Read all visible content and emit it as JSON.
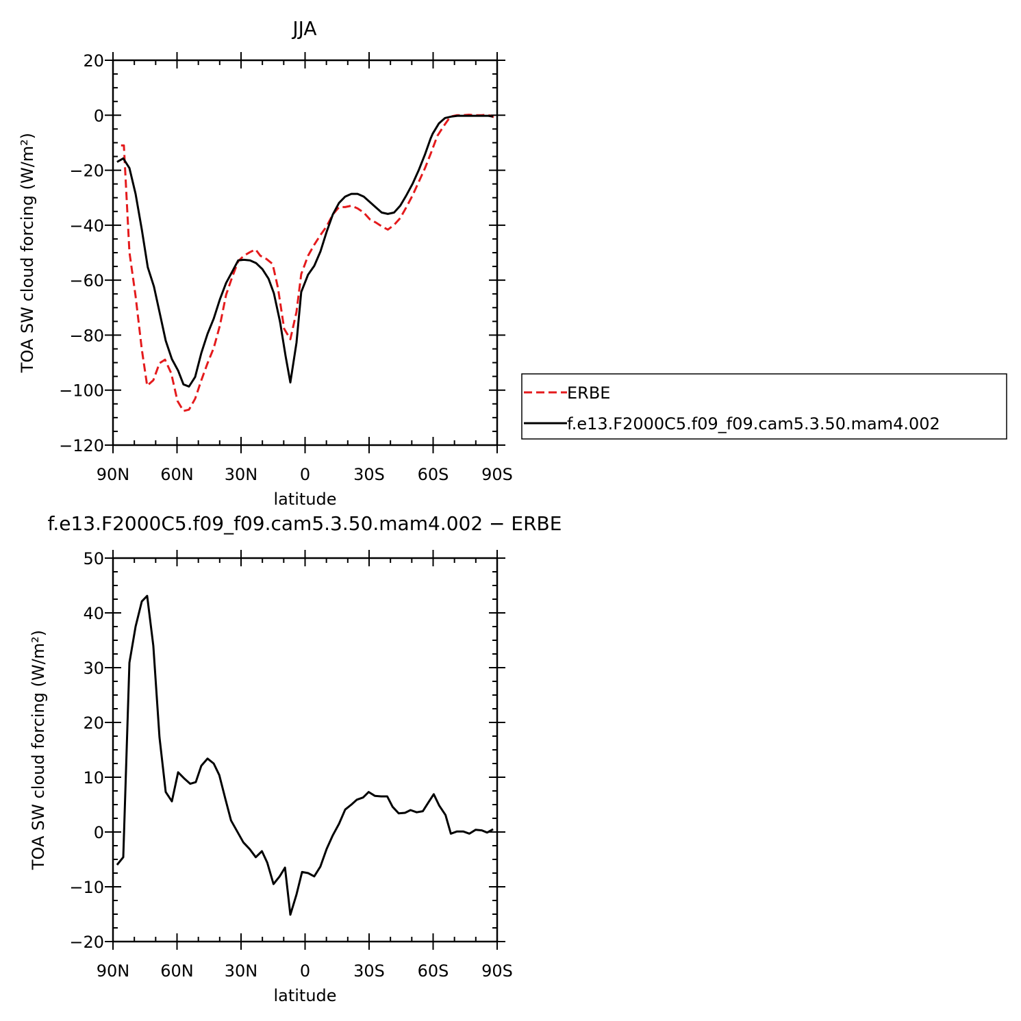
{
  "chart_data": [
    {
      "type": "line",
      "title": "JJA",
      "xlabel": "latitude",
      "ylabel": "TOA SW cloud forcing (W/m²)",
      "xlim": [
        90,
        -90
      ],
      "xticks": [
        {
          "value": 90,
          "label": "90N"
        },
        {
          "value": 60,
          "label": "60N"
        },
        {
          "value": 30,
          "label": "30N"
        },
        0,
        {
          "value": -30,
          "label": "30S"
        },
        {
          "value": -60,
          "label": "60S"
        },
        {
          "value": -90,
          "label": "90S"
        }
      ],
      "ylim": [
        -120,
        20
      ],
      "yticks": [
        {
          "value": -120,
          "label": "−120"
        },
        {
          "value": -100,
          "label": "−100"
        },
        {
          "value": -80,
          "label": "−80"
        },
        {
          "value": -60,
          "label": "−60"
        },
        {
          "value": -40,
          "label": "−40"
        },
        {
          "value": -20,
          "label": "−20"
        },
        0,
        20
      ],
      "legend": "right",
      "series": [
        {
          "name": "ERBE",
          "color": "#e41a1c",
          "dash": true,
          "x": [
            86.2,
            84.9,
            82.3,
            79.4,
            76.5,
            74,
            71.1,
            68.2,
            65.6,
            62.7,
            59.8,
            57,
            54.4,
            51.5,
            48.6,
            45.7,
            42.8,
            39.9,
            37,
            34.2,
            31.3,
            28.7,
            25.8,
            23.2,
            21,
            18.1,
            15.2,
            12.7,
            9.8,
            6.9,
            4,
            1.8,
            -1.4,
            -4.3,
            -7.2,
            -10.1,
            -13,
            -15.9,
            -18.8,
            -21.7,
            -24.6,
            -27.5,
            -30.4,
            -33.3,
            -35.9,
            -38.8,
            -41.7,
            -44.6,
            -47.5,
            -50.4,
            -53.3,
            -56.2,
            -59.1,
            -62,
            -64.9,
            -68.1,
            -71,
            -73.9,
            -76.8,
            -79.7,
            -82.6,
            -85.5,
            -88.4
          ],
          "values": [
            -11,
            -11,
            -49.8,
            -65.8,
            -85.2,
            -98.4,
            -96.4,
            -90.2,
            -88.9,
            -93.9,
            -103.9,
            -107.6,
            -107.1,
            -103.1,
            -96.4,
            -90.2,
            -84.7,
            -76.5,
            -65.3,
            -59,
            -53.1,
            -51.1,
            -49.8,
            -48.8,
            -51.1,
            -52.3,
            -54.1,
            -62.8,
            -77.7,
            -81.5,
            -71.5,
            -57.8,
            -51.1,
            -47.1,
            -43.6,
            -40.4,
            -36.1,
            -33.4,
            -33.4,
            -32.9,
            -33.9,
            -35.4,
            -37.9,
            -39.1,
            -40.4,
            -41.6,
            -39.9,
            -37.4,
            -33.4,
            -29.1,
            -24.2,
            -19.2,
            -13.5,
            -7.5,
            -4,
            -0.5,
            0,
            0,
            0.2,
            0,
            0,
            0.2,
            -0.7
          ]
        },
        {
          "name": "f.e13.F2000C5.f09_f09.cam5.3.50.mam4.002",
          "color": "#000000",
          "dash": false,
          "x": [
            88.1,
            85.2,
            82.3,
            79.4,
            76.5,
            73.7,
            70.8,
            67.9,
            65.3,
            62.4,
            59.5,
            57,
            54.4,
            51.5,
            48.6,
            45.7,
            42.8,
            39.9,
            37,
            34.2,
            31.3,
            28.7,
            25.8,
            22.9,
            20,
            17.1,
            14.6,
            11.7,
            9.1,
            6.9,
            4,
            1.8,
            -1.4,
            -4.3,
            -7.2,
            -10.1,
            -13,
            -15.9,
            -18.8,
            -21.7,
            -24.6,
            -27.5,
            -30.4,
            -33.3,
            -35.9,
            -38.8,
            -41.7,
            -44.6,
            -47.5,
            -50.4,
            -53.3,
            -56.2,
            -58.8,
            -59.8,
            -62.7,
            -65.6,
            -68.5,
            -71.4,
            -74.3,
            -77.2,
            -80.1,
            -83,
            -85.9,
            -88
          ],
          "values": [
            -17,
            -15.7,
            -19.2,
            -28.6,
            -41.6,
            -55.3,
            -62.3,
            -72.7,
            -82,
            -88.7,
            -92.9,
            -97.9,
            -98.7,
            -95.2,
            -86.5,
            -79.5,
            -74,
            -67,
            -61,
            -57,
            -52.8,
            -52.6,
            -52.8,
            -53.8,
            -56,
            -59.5,
            -64.8,
            -75.2,
            -87.7,
            -97.2,
            -82.7,
            -64.3,
            -58,
            -54.8,
            -49.6,
            -42.4,
            -36.1,
            -31.9,
            -29.6,
            -28.6,
            -28.6,
            -29.6,
            -31.6,
            -33.6,
            -35.4,
            -35.9,
            -35.4,
            -32.9,
            -29.1,
            -24.9,
            -19.9,
            -14.2,
            -8.5,
            -6.7,
            -3,
            -1,
            -0.5,
            -0.2,
            -0.2,
            -0.2,
            -0.2,
            -0.2,
            -0.2,
            -0.5
          ]
        }
      ]
    },
    {
      "type": "line",
      "title": "f.e13.F2000C5.f09_f09.cam5.3.50.mam4.002 − ERBE",
      "xlabel": "latitude",
      "ylabel": "TOA SW cloud forcing (W/m²)",
      "xlim": [
        90,
        -90
      ],
      "xticks": [
        {
          "value": 90,
          "label": "90N"
        },
        {
          "value": 60,
          "label": "60N"
        },
        {
          "value": 30,
          "label": "30N"
        },
        0,
        {
          "value": -30,
          "label": "30S"
        },
        {
          "value": -60,
          "label": "60S"
        },
        {
          "value": -90,
          "label": "90S"
        }
      ],
      "ylim": [
        -20,
        50
      ],
      "yticks": [
        {
          "value": -20,
          "label": "−20"
        },
        {
          "value": -10,
          "label": "−10"
        },
        0,
        10,
        20,
        30,
        40,
        50
      ],
      "series": [
        {
          "color": "#000000",
          "dash": false,
          "x": [
            88.1,
            85.2,
            82.3,
            79.4,
            76.5,
            74,
            71.1,
            68.2,
            65.3,
            62.4,
            59.5,
            56.7,
            53.8,
            51.2,
            48.6,
            45.7,
            42.8,
            40.2,
            37.3,
            34.7,
            31.8,
            28.9,
            26,
            23.1,
            20.2,
            17.7,
            14.8,
            11.9,
            9.4,
            6.9,
            4,
            1.4,
            -1.4,
            -4.3,
            -7.2,
            -10.1,
            -13,
            -15.9,
            -18.8,
            -21.7,
            -24.3,
            -27.2,
            -29.8,
            -32.7,
            -35.6,
            -38.5,
            -41,
            -43.9,
            -46.8,
            -49.4,
            -52.3,
            -55.2,
            -57.8,
            -60.3,
            -62.9,
            -65.8,
            -68.3,
            -71.2,
            -74.1,
            -77,
            -79.9,
            -82.8,
            -85.3,
            -88.1
          ],
          "values": [
            -6,
            -4.6,
            30.9,
            37.5,
            42.1,
            43.1,
            34,
            17.3,
            7.3,
            5.6,
            10.9,
            9.8,
            8.8,
            9.1,
            12.1,
            13.4,
            12.5,
            10.4,
            6,
            2.1,
            0.1,
            -1.9,
            -3.1,
            -4.6,
            -3.5,
            -5.6,
            -9.5,
            -8.1,
            -6.5,
            -15.1,
            -11.4,
            -7.3,
            -7.5,
            -8.1,
            -6.3,
            -3.1,
            -0.6,
            1.5,
            4.1,
            5,
            5.9,
            6.3,
            7.3,
            6.6,
            6.5,
            6.5,
            4.6,
            3.4,
            3.5,
            4,
            3.6,
            3.8,
            5.4,
            6.9,
            4.8,
            3.1,
            -0.3,
            0.1,
            0.1,
            -0.3,
            0.4,
            0.3,
            -0.1,
            0.5
          ]
        }
      ]
    }
  ]
}
